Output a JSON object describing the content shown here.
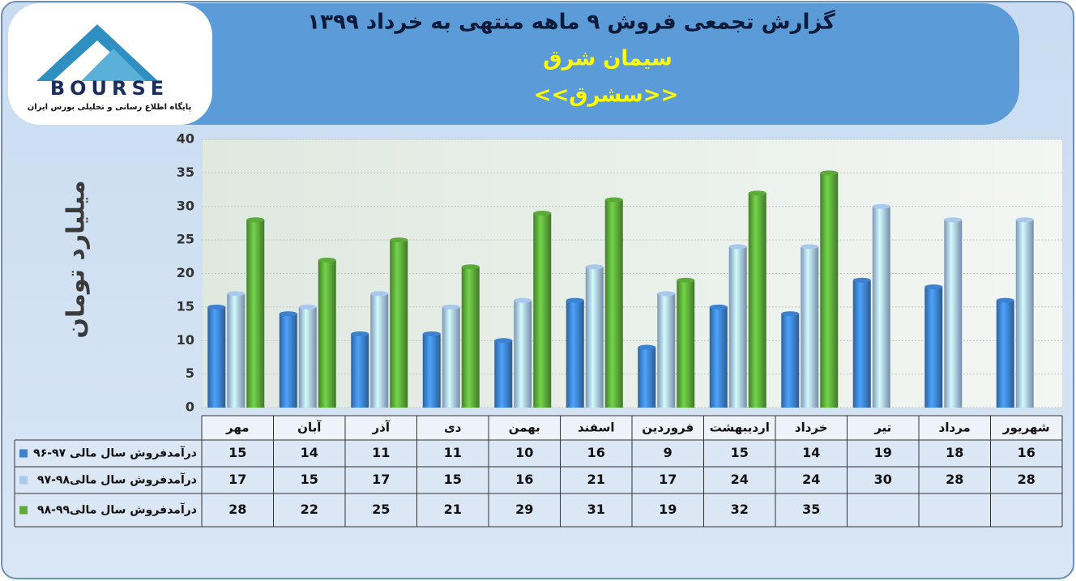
{
  "chart_data": {
    "type": "bar",
    "title": "گزارش تجمعی فروش ۹ ماهه منتهی به خرداد ۱۳۹۹",
    "subtitle": "سیمان شرق",
    "symbol": "<<سشرق>>",
    "logo": {
      "name": "BOURSE",
      "tagline": "پایگاه اطلاع رسانی و تحلیلی بورس ایران"
    },
    "y_label": "میلیارد تومان",
    "categories": [
      "مهر",
      "آبان",
      "آذر",
      "دی",
      "بهمن",
      "اسفند",
      "فروردین",
      "اردیبهشت",
      "خرداد",
      "تیر",
      "مرداد",
      "شهریور"
    ],
    "series": [
      {
        "name": "درآمدفروش سال مالی ۹۷-۹۶",
        "color": "#3d82d0",
        "values": [
          15,
          14,
          11,
          11,
          10,
          16,
          9,
          15,
          14,
          19,
          18,
          16
        ]
      },
      {
        "name": "درآمدفروش سال مالی۹۸-۹۷",
        "color": "#a8c8ee",
        "values": [
          17,
          15,
          17,
          15,
          16,
          21,
          17,
          24,
          24,
          30,
          28,
          28
        ]
      },
      {
        "name": "درآمدفروش سال مالی۹۹-۹۸",
        "color": "#5caa3a",
        "values": [
          28,
          22,
          25,
          21,
          29,
          31,
          19,
          32,
          35,
          null,
          null,
          null
        ]
      }
    ],
    "ylim": [
      0,
      40
    ],
    "yticks": [
      0,
      5,
      10,
      15,
      20,
      25,
      30,
      35,
      40
    ],
    "grid": true
  }
}
